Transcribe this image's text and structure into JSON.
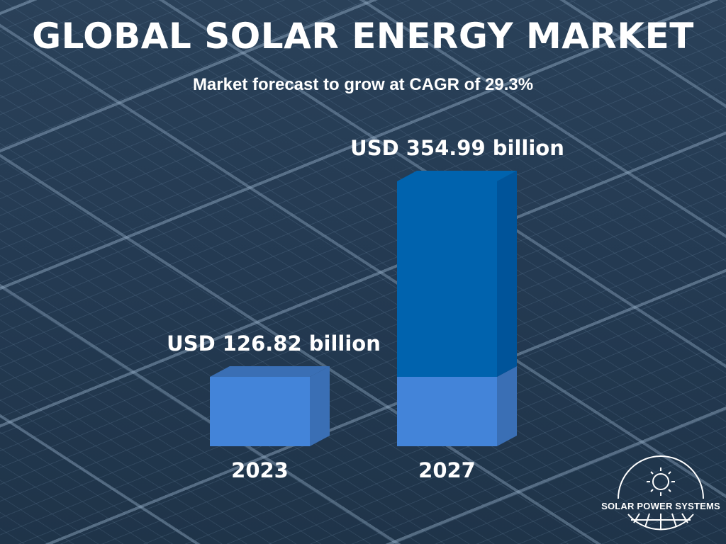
{
  "title": "GLOBAL SOLAR ENERGY MARKET",
  "subtitle": "Market forecast to grow at CAGR of 29.3%",
  "chart_data": {
    "type": "bar",
    "categories": [
      "2023",
      "2027"
    ],
    "values": [
      126.82,
      354.99
    ],
    "data_labels": [
      "USD 126.82 billion",
      "USD 354.99 billion"
    ],
    "unit": "USD billion",
    "colors": {
      "base": "#4384d9",
      "base_side": "#3a6fb5",
      "growth": "#0063ae",
      "growth_side": "#00549a"
    },
    "axes_visible": false,
    "grid": false
  },
  "logo": {
    "text": "SOLAR POWER SYSTEMS",
    "icon": "sun-globe-icon"
  }
}
